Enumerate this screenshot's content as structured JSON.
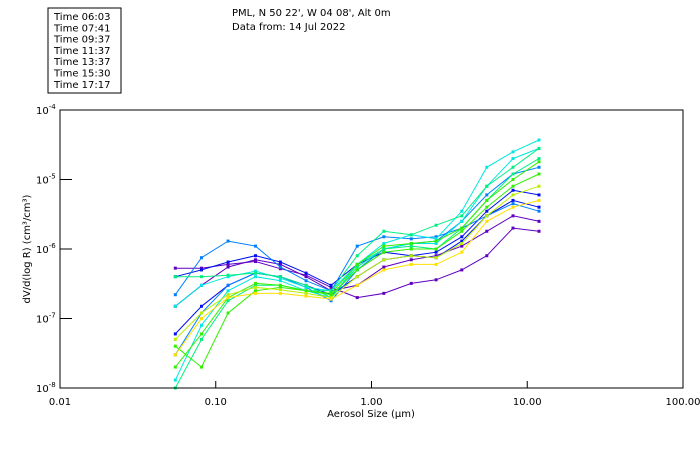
{
  "chart_data": {
    "type": "line",
    "title": [
      "PML, N 50 22', W 04 08', Alt 0m",
      "Data from: 14 Jul 2022"
    ],
    "xlabel": "Aerosol Size (µm)",
    "ylabel": "dV/d(log R) (cm³/cm³)",
    "xscale": "log",
    "yscale": "log",
    "xlim": [
      0.01,
      100
    ],
    "ylim": [
      1e-08,
      0.0001
    ],
    "xticks": [
      {
        "v": 0.01,
        "label": "0.01"
      },
      {
        "v": 0.1,
        "label": "0.10"
      },
      {
        "v": 1,
        "label": "1.00"
      },
      {
        "v": 10,
        "label": "10.00"
      },
      {
        "v": 100,
        "label": "100.00"
      }
    ],
    "yticks": [
      {
        "v": 0.0001,
        "base": "10",
        "exp": "-4"
      },
      {
        "v": 1e-05,
        "base": "10",
        "exp": "-5"
      },
      {
        "v": 1e-06,
        "base": "10",
        "exp": "-6"
      },
      {
        "v": 1e-07,
        "base": "10",
        "exp": "-7"
      },
      {
        "v": 1e-08,
        "base": "10",
        "exp": "-8"
      }
    ],
    "legend_position": "top-left, outside plot",
    "legend": [
      {
        "label": "Time 06:03",
        "color": "#6000c0"
      },
      {
        "label": "Time 07:41",
        "color": "#0010f0"
      },
      {
        "label": "Time 09:37",
        "color": "#0080ff"
      },
      {
        "label": "Time 11:37",
        "color": "#00e8e0"
      },
      {
        "label": "Time 13:37",
        "color": "#00f080"
      },
      {
        "label": "Time 15:30",
        "color": "#30f000"
      },
      {
        "label": "Time 17:17",
        "color": "#b8f000"
      }
    ],
    "x": [
      0.055,
      0.081,
      0.12,
      0.18,
      0.26,
      0.38,
      0.55,
      0.81,
      1.2,
      1.8,
      2.6,
      3.8,
      5.5,
      8.1,
      11.9
    ],
    "series": [
      {
        "name": "Time 06:03",
        "color": "#6000c0",
        "values": [
          5.3e-07,
          5.3e-07,
          6e-07,
          6.6e-07,
          5.2e-07,
          4.2e-07,
          2.8e-07,
          2e-07,
          2.3e-07,
          3.2e-07,
          3.6e-07,
          5e-07,
          8e-07,
          2e-06,
          1.8e-06
        ]
      },
      {
        "name": "Time 06:03",
        "color": "#6000c0",
        "values": [
          1.5e-07,
          3e-07,
          5.5e-07,
          7e-07,
          6e-07,
          4e-07,
          2.5e-07,
          3e-07,
          5.5e-07,
          7e-07,
          8e-07,
          1.1e-06,
          1.8e-06,
          3e-06,
          2.5e-06
        ]
      },
      {
        "name": "Time 07:41",
        "color": "#0010f0",
        "values": [
          4e-07,
          5e-07,
          6.5e-07,
          8e-07,
          6.5e-07,
          4.5e-07,
          3e-07,
          6e-07,
          9e-07,
          8e-07,
          7.5e-07,
          1.3e-06,
          3e-06,
          5e-06,
          4e-06
        ]
      },
      {
        "name": "Time 07:41",
        "color": "#0010f0",
        "values": [
          6e-08,
          1.5e-07,
          3e-07,
          4.5e-07,
          4e-07,
          3e-07,
          2.2e-07,
          4e-07,
          7e-07,
          8e-07,
          9e-07,
          1.5e-06,
          3.5e-06,
          7e-06,
          6e-06
        ]
      },
      {
        "name": "Time 09:37",
        "color": "#0080ff",
        "values": [
          2.2e-07,
          7.5e-07,
          1.3e-06,
          1.1e-06,
          5.5e-07,
          3.5e-07,
          2.5e-07,
          1.1e-06,
          1.5e-06,
          1.4e-06,
          1.5e-06,
          2e-06,
          3e-06,
          4.5e-06,
          3.5e-06
        ]
      },
      {
        "name": "Time 09:37",
        "color": "#0080ff",
        "values": [
          3e-08,
          1.2e-07,
          3e-07,
          4.5e-07,
          4e-07,
          2.8e-07,
          1.8e-07,
          5e-07,
          1e-06,
          1.2e-06,
          1.3e-06,
          2.5e-06,
          6e-06,
          1.2e-05,
          1.5e-05
        ]
      },
      {
        "name": "Time 11:37",
        "color": "#00e8e0",
        "values": [
          1.3e-08,
          8e-08,
          2.5e-07,
          4e-07,
          3.5e-07,
          2.5e-07,
          2e-07,
          6e-07,
          1.2e-06,
          1.6e-06,
          1.4e-06,
          3.5e-06,
          1.5e-05,
          2.5e-05,
          3.7e-05
        ]
      },
      {
        "name": "Time 11:37",
        "color": "#00e8e0",
        "values": [
          1.5e-07,
          3e-07,
          4e-07,
          4.8e-07,
          3.8e-07,
          2.8e-07,
          2.5e-07,
          6e-07,
          1e-06,
          1.2e-06,
          1.2e-06,
          2.5e-06,
          8e-06,
          2e-05,
          2.8e-05
        ]
      },
      {
        "name": "Time 13:37",
        "color": "#00f080",
        "values": [
          1e-08,
          5e-08,
          1.8e-07,
          3e-07,
          3e-07,
          2.5e-07,
          2.5e-07,
          8e-07,
          1.8e-06,
          1.6e-06,
          2.2e-06,
          3e-06,
          8e-06,
          1.5e-05,
          2.8e-05
        ]
      },
      {
        "name": "Time 13:37",
        "color": "#00f080",
        "values": [
          4e-07,
          4e-07,
          4.2e-07,
          4.5e-07,
          4e-07,
          3e-07,
          2e-07,
          5.5e-07,
          1e-06,
          1.1e-06,
          1e-06,
          2e-06,
          5e-06,
          1.2e-05,
          2e-05
        ]
      },
      {
        "name": "Time 15:30",
        "color": "#30f000",
        "values": [
          2e-08,
          6e-08,
          2e-07,
          3.2e-07,
          3e-07,
          2.5e-07,
          2.3e-07,
          6e-07,
          1.1e-06,
          1.2e-06,
          1.3e-06,
          2e-06,
          5e-06,
          1e-05,
          1.8e-05
        ]
      },
      {
        "name": "Time 15:30",
        "color": "#30f000",
        "values": [
          4e-08,
          2e-08,
          1.2e-07,
          2.5e-07,
          2.8e-07,
          2.5e-07,
          2.2e-07,
          5e-07,
          9e-07,
          1e-06,
          1e-06,
          1.8e-06,
          4e-06,
          8e-06,
          1.2e-05
        ]
      },
      {
        "name": "Time 17:17",
        "color": "#b8f000",
        "values": [
          5e-08,
          1.2e-07,
          2.2e-07,
          2.8e-07,
          2.6e-07,
          2.3e-07,
          2e-07,
          4e-07,
          7e-07,
          8e-07,
          7.5e-07,
          1.2e-06,
          3e-06,
          6e-06,
          8e-06
        ]
      },
      {
        "name": "Time 17:17",
        "color": "#ffe000",
        "values": [
          3e-08,
          1e-07,
          2e-07,
          2.3e-07,
          2.3e-07,
          2.1e-07,
          1.9e-07,
          3e-07,
          5e-07,
          6e-07,
          6e-07,
          9e-07,
          2.5e-06,
          4e-06,
          5e-06
        ]
      }
    ]
  }
}
